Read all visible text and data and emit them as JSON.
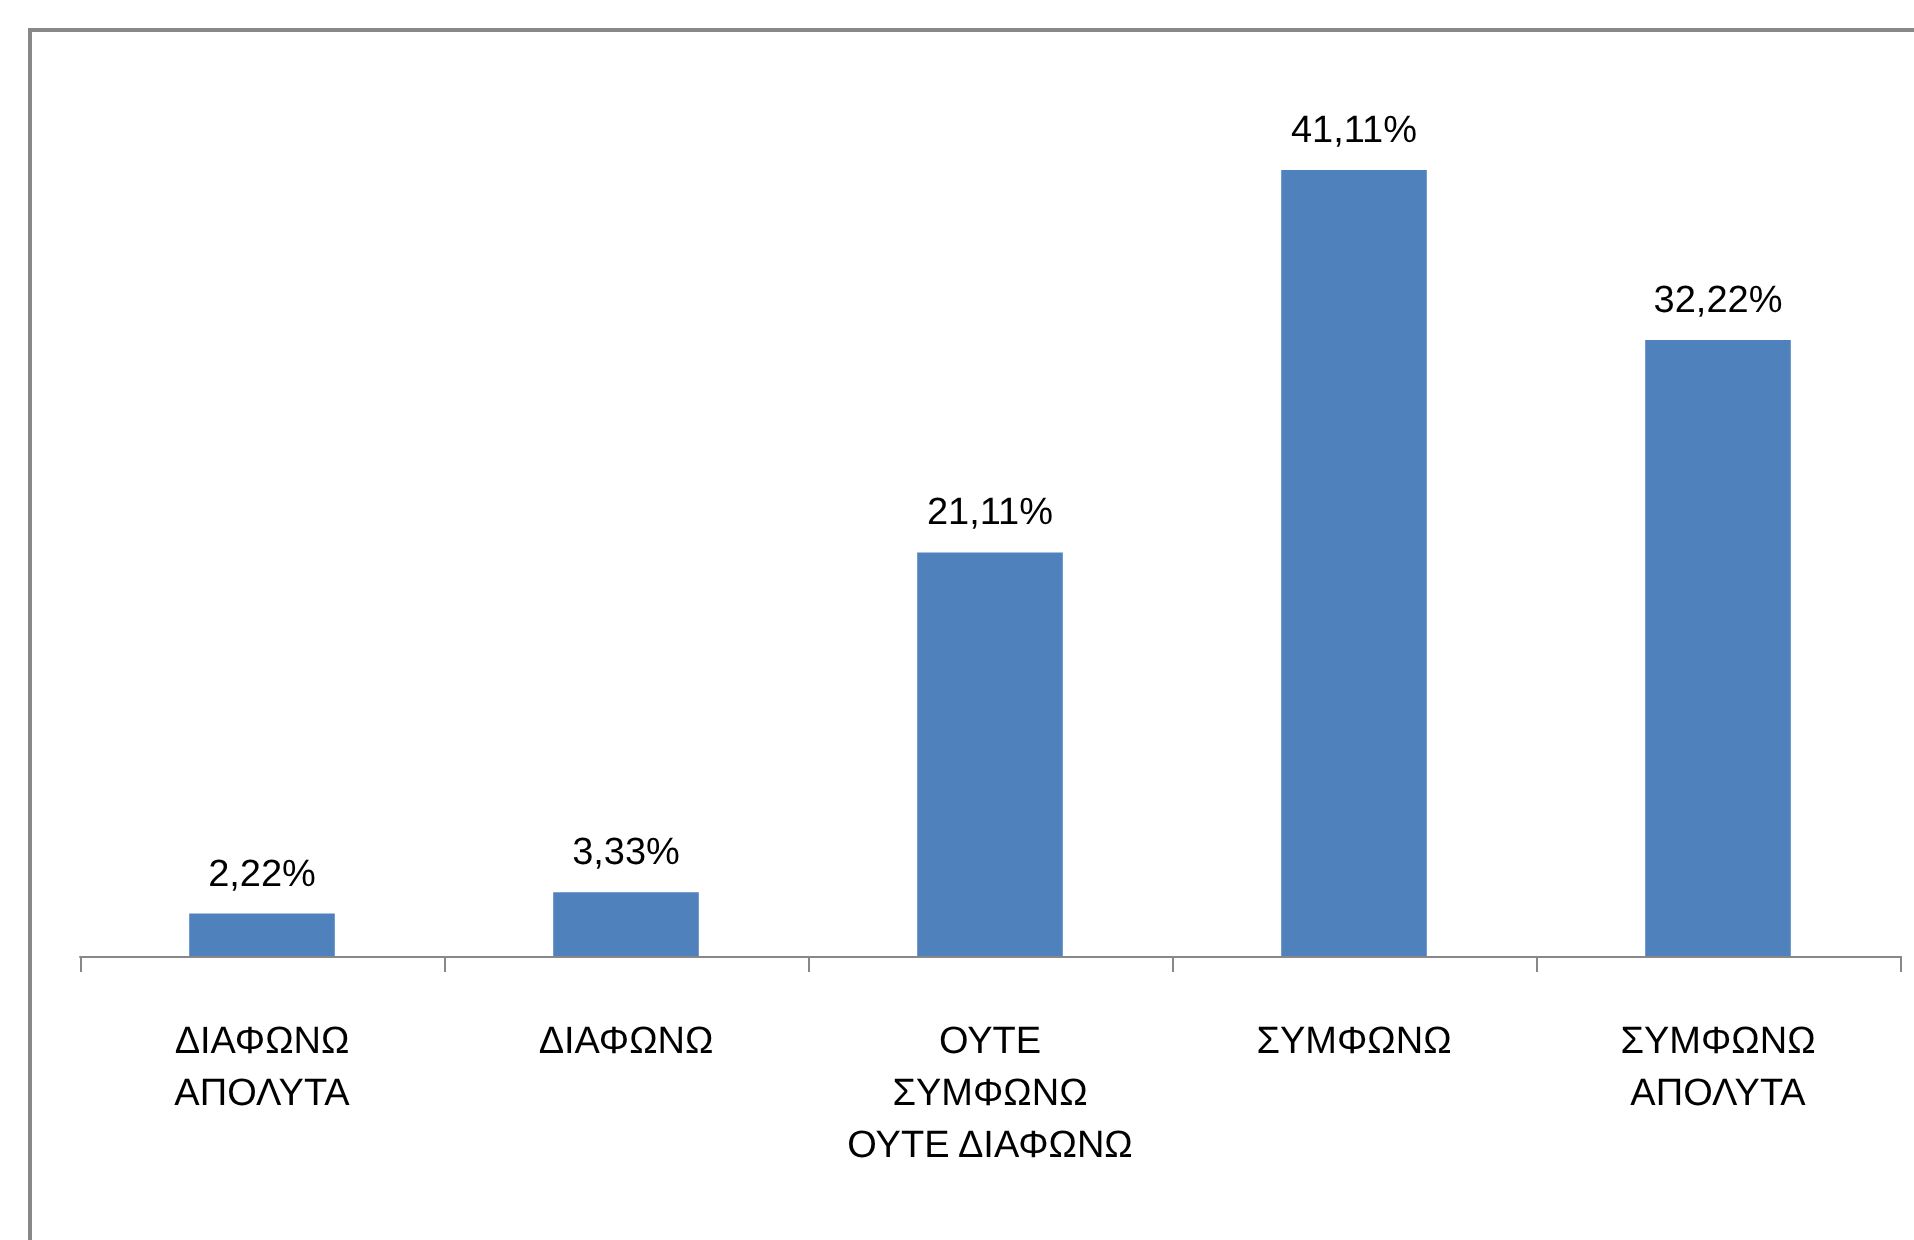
{
  "chart_data": {
    "type": "bar",
    "categories": [
      "ΔΙΑΦΩΝΩ\nΑΠΟΛΥΤΑ",
      "ΔΙΑΦΩΝΩ",
      "ΟΥΤΕ\nΣΥΜΦΩΝΩ\nΟΥΤΕ ΔΙΑΦΩΝΩ",
      "ΣΥΜΦΩΝΩ",
      "ΣΥΜΦΩΝΩ\nΑΠΟΛΥΤΑ"
    ],
    "values": [
      2.22,
      3.33,
      21.11,
      41.11,
      32.22
    ],
    "value_labels": [
      "2,22%",
      "3,33%",
      "21,11%",
      "41,11%",
      "32,22%"
    ],
    "color": "#4f81bd",
    "grid": false
  }
}
